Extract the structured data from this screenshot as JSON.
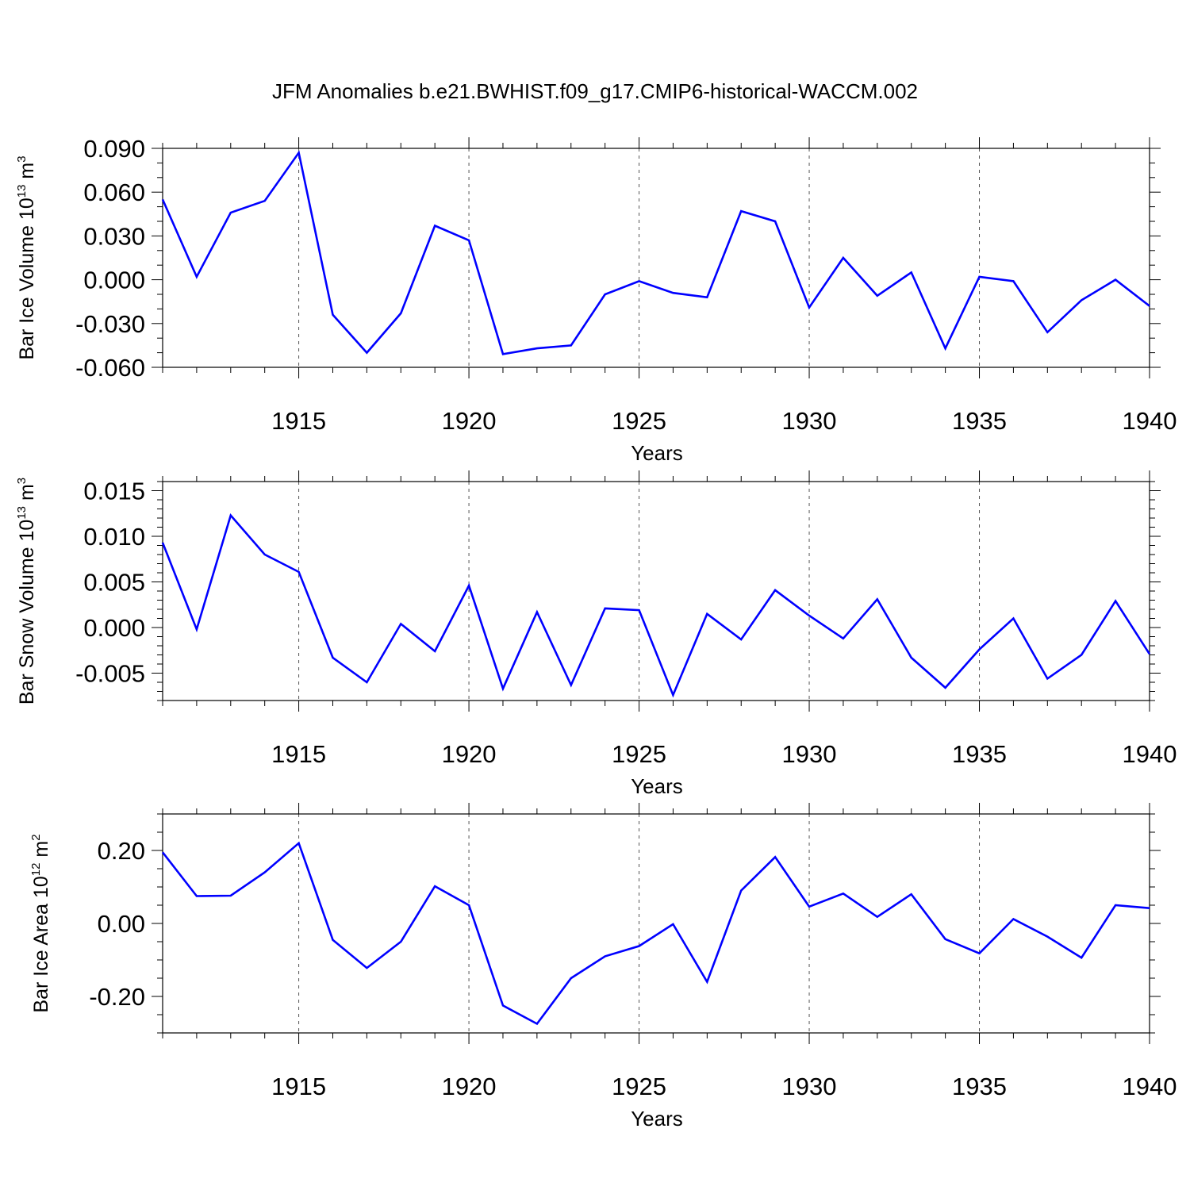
{
  "chart_data": {
    "title": "JFM Anomalies b.e21.BWHIST.f09_g17.CMIP6-historical-WACCM.002",
    "type": "line",
    "line_color": "#0000ff",
    "panels": [
      {
        "type": "line",
        "ylabel_main": "Bar Ice Volume 10",
        "ylabel_exp": "13",
        "ylabel_unit": " m",
        "ylabel_unit_exp": "3",
        "xlabel": "Years",
        "x": [
          1911,
          1912,
          1913,
          1914,
          1915,
          1916,
          1917,
          1918,
          1919,
          1920,
          1921,
          1922,
          1923,
          1924,
          1925,
          1926,
          1927,
          1928,
          1929,
          1930,
          1931,
          1932,
          1933,
          1934,
          1935,
          1936,
          1937,
          1938,
          1939,
          1940
        ],
        "values": [
          0.055,
          0.002,
          0.046,
          0.054,
          0.087,
          -0.024,
          -0.05,
          -0.023,
          0.037,
          0.027,
          -0.051,
          -0.047,
          -0.045,
          -0.01,
          -0.001,
          -0.009,
          -0.012,
          0.047,
          0.04,
          -0.019,
          0.015,
          -0.011,
          0.005,
          -0.047,
          0.002,
          -0.001,
          -0.036,
          -0.014,
          0.0,
          -0.018
        ],
        "xlim": [
          1911,
          1940
        ],
        "ylim": [
          -0.06,
          0.09
        ],
        "yticks": [
          -0.06,
          -0.03,
          0.0,
          0.03,
          0.06,
          0.09
        ],
        "ytick_labels": [
          "-0.060",
          "-0.030",
          "0.000",
          "0.030",
          "0.060",
          "0.090"
        ],
        "yminor_step": 0.01,
        "xticks": [
          1915,
          1920,
          1925,
          1930,
          1935,
          1940
        ],
        "xtick_labels": [
          "1915",
          "1920",
          "1925",
          "1930",
          "1935",
          "1940"
        ],
        "grid": "dashed vertical at major x ticks"
      },
      {
        "type": "line",
        "ylabel_main": "Bar Snow Volume 10",
        "ylabel_exp": "13",
        "ylabel_unit": " m",
        "ylabel_unit_exp": "3",
        "xlabel": "Years",
        "x": [
          1911,
          1912,
          1913,
          1914,
          1915,
          1916,
          1917,
          1918,
          1919,
          1920,
          1921,
          1922,
          1923,
          1924,
          1925,
          1926,
          1927,
          1928,
          1929,
          1930,
          1931,
          1932,
          1933,
          1934,
          1935,
          1936,
          1937,
          1938,
          1939,
          1940
        ],
        "values": [
          0.0093,
          -0.0002,
          0.0123,
          0.008,
          0.0061,
          -0.0033,
          -0.006,
          0.0004,
          -0.0026,
          0.0046,
          -0.0067,
          0.0017,
          -0.0063,
          0.0021,
          0.0019,
          -0.0074,
          0.0015,
          -0.0013,
          0.0041,
          0.0013,
          -0.0012,
          0.0031,
          -0.0033,
          -0.0066,
          -0.0024,
          0.001,
          -0.0056,
          -0.003,
          0.0029,
          -0.0029
        ],
        "xlim": [
          1911,
          1940
        ],
        "ylim": [
          -0.008,
          0.016
        ],
        "yticks": [
          -0.005,
          0.0,
          0.005,
          0.01,
          0.015
        ],
        "ytick_labels": [
          "-0.005",
          "0.000",
          "0.005",
          "0.010",
          "0.015"
        ],
        "yminor_step": 0.001,
        "xticks": [
          1915,
          1920,
          1925,
          1930,
          1935,
          1940
        ],
        "xtick_labels": [
          "1915",
          "1920",
          "1925",
          "1930",
          "1935",
          "1940"
        ],
        "grid": "dashed vertical at major x ticks"
      },
      {
        "type": "line",
        "ylabel_main": "Bar Ice Area 10",
        "ylabel_exp": "12",
        "ylabel_unit": " m",
        "ylabel_unit_exp": "2",
        "xlabel": "Years",
        "x": [
          1911,
          1912,
          1913,
          1914,
          1915,
          1916,
          1917,
          1918,
          1919,
          1920,
          1921,
          1922,
          1923,
          1924,
          1925,
          1926,
          1927,
          1928,
          1929,
          1930,
          1931,
          1932,
          1933,
          1934,
          1935,
          1936,
          1937,
          1938,
          1939,
          1940
        ],
        "values": [
          0.195,
          0.075,
          0.076,
          0.14,
          0.22,
          -0.045,
          -0.122,
          -0.05,
          0.102,
          0.05,
          -0.225,
          -0.275,
          -0.15,
          -0.09,
          -0.062,
          -0.002,
          -0.16,
          0.09,
          0.182,
          0.046,
          0.082,
          0.018,
          0.08,
          -0.043,
          -0.082,
          0.012,
          -0.036,
          -0.094,
          0.05,
          0.042
        ],
        "xlim": [
          1911,
          1940
        ],
        "ylim": [
          -0.3,
          0.3
        ],
        "yticks": [
          -0.2,
          0.0,
          0.2
        ],
        "ytick_labels": [
          "-0.20",
          "0.00",
          "0.20"
        ],
        "yminor_step": 0.05,
        "xticks": [
          1915,
          1920,
          1925,
          1930,
          1935,
          1940
        ],
        "xtick_labels": [
          "1915",
          "1920",
          "1925",
          "1930",
          "1935",
          "1940"
        ],
        "grid": "dashed vertical at major x ticks"
      }
    ]
  }
}
